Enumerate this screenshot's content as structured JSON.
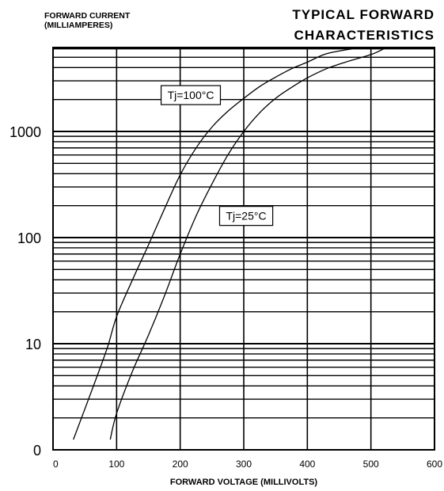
{
  "chart_data": {
    "type": "line",
    "title": "TYPICAL FORWARD\nCHARACTERISTICS",
    "ylabel": "FORWARD CURRENT\n(MILLIAMPERES)",
    "xlabel": "FORWARD VOLTAGE (MILLIVOLTS)",
    "y_scale": "log",
    "xlim": [
      0,
      600
    ],
    "ylim": [
      1,
      6000
    ],
    "x_ticks": [
      "0",
      "100",
      "200",
      "300",
      "400",
      "500",
      "600"
    ],
    "y_ticks": [
      {
        "label": "1000",
        "value": 1000
      },
      {
        "label": "100",
        "value": 100
      },
      {
        "label": "10",
        "value": 10
      },
      {
        "label": "0",
        "value": 1
      }
    ],
    "grid": true,
    "series": [
      {
        "name": "Tj=100°C",
        "stroke": "#000000",
        "x": [
          32,
          60,
          85,
          100,
          125,
          150,
          175,
          200,
          225,
          250,
          275,
          300,
          325,
          350,
          375,
          400,
          430,
          470
        ],
        "y": [
          1.25,
          3.5,
          9,
          18,
          40,
          85,
          185,
          390,
          700,
          1100,
          1550,
          2050,
          2650,
          3250,
          3900,
          4500,
          5400,
          6000
        ]
      },
      {
        "name": "Tj=25°C",
        "stroke": "#000000",
        "x": [
          90,
          100,
          125,
          150,
          175,
          200,
          225,
          250,
          275,
          300,
          325,
          350,
          375,
          400,
          430,
          460,
          500,
          520
        ],
        "y": [
          1.25,
          2.2,
          5.5,
          12,
          28,
          70,
          160,
          320,
          600,
          1000,
          1500,
          2050,
          2600,
          3200,
          3900,
          4500,
          5300,
          6000
        ]
      }
    ],
    "annotations": [
      {
        "text": "Tj=100°C",
        "x": 170,
        "y": 2200
      },
      {
        "text": "Tj=25°C",
        "x": 262,
        "y": 160
      }
    ]
  }
}
